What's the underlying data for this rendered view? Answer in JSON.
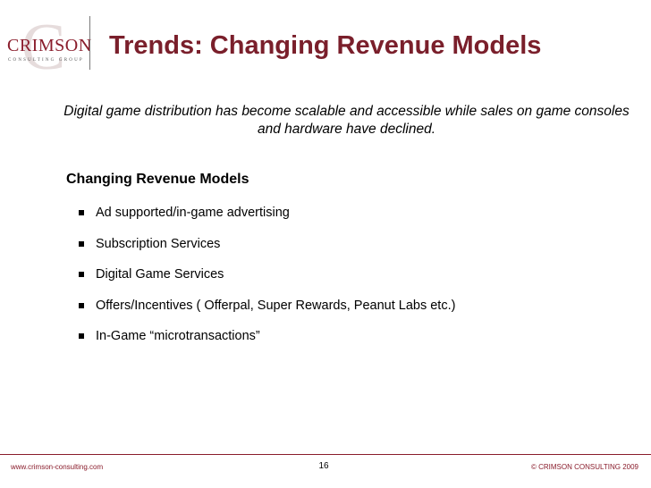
{
  "logo": {
    "mark": "C",
    "brand": "CRIMSON",
    "tagline": "CONSULTING GROUP"
  },
  "slide": {
    "title": "Trends: Changing Revenue Models",
    "subtitle": "Digital game distribution has become scalable and accessible while sales on game consoles and hardware have declined.",
    "section_heading": "Changing Revenue Models",
    "bullets": [
      "Ad supported/in-game advertising",
      "Subscription Services",
      "Digital Game Services",
      "Offers/Incentives ( Offerpal, Super Rewards, Peanut Labs etc.)",
      "In-Game “microtransactions”"
    ]
  },
  "footer": {
    "website": "www.crimson-consulting.com",
    "page_number": "16",
    "copyright": "© CRIMSON CONSULTING 2009"
  },
  "colors": {
    "accent": "#7a1f2b",
    "text": "#000000",
    "background": "#ffffff"
  }
}
